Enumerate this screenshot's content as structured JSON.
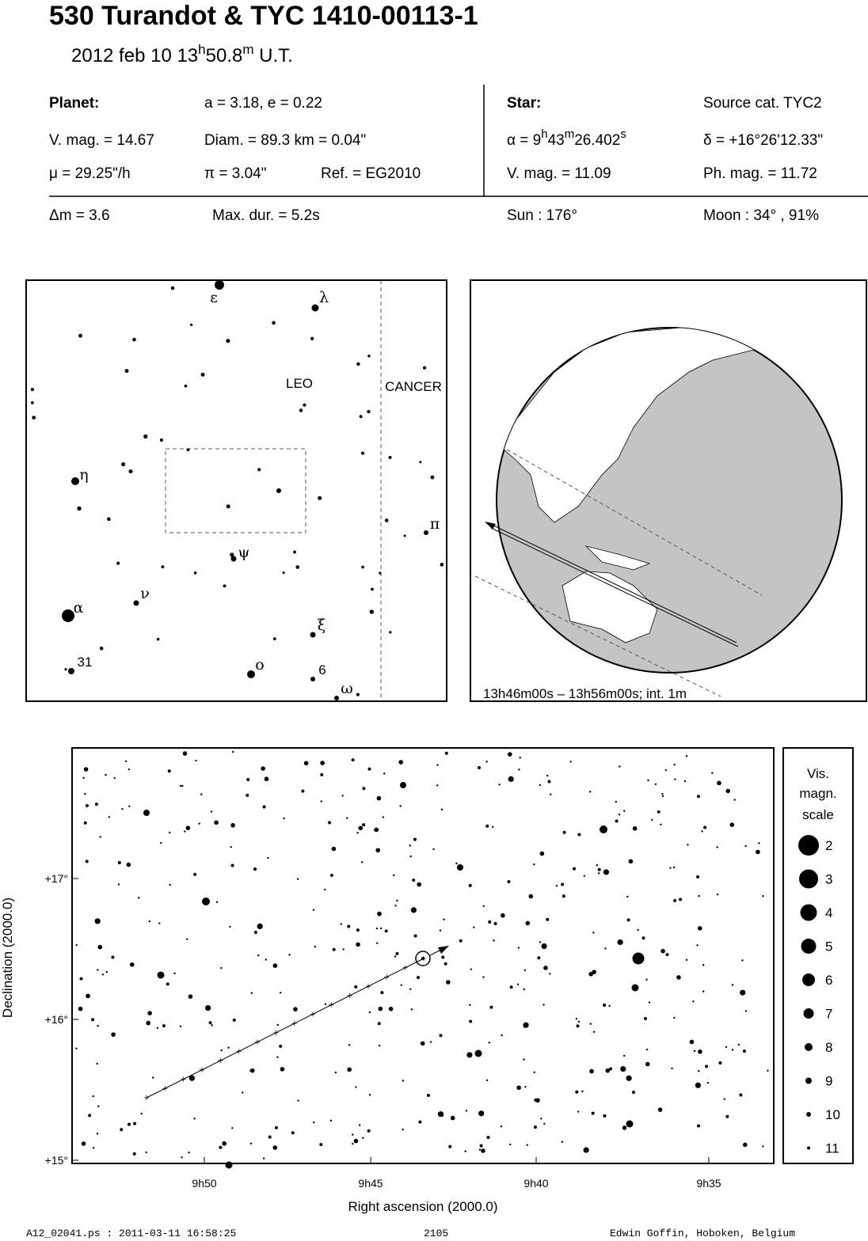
{
  "header": {
    "title": "530 Turandot  &  TYC 1410-00113-1",
    "subtitle": [
      "2012 feb 10  13",
      "h",
      "50.8",
      "m",
      " U.T."
    ]
  },
  "info": {
    "planet_label": "Planet:",
    "orbit": "a = 3.18, e = 0.22",
    "vmag": "V. mag. = 14.67",
    "diam": "Diam. = 89.3 km = 0.04\"",
    "mu": "μ =  29.25\"/h",
    "parallax": "π =  3.04\"",
    "ref": "Ref. = EG2010",
    "star_label": "Star:",
    "source": "Source cat.  TYC2",
    "alpha": [
      "α =  9",
      "h",
      "43",
      "m",
      "26.402",
      "s"
    ],
    "delta": "δ = +16°26'12.33\"",
    "star_vmag": "V. mag. = 11.09",
    "phmag": "Ph. mag. = 11.72",
    "dm": "Δm = 3.6",
    "maxdur": "Max. dur. = 5.2s",
    "sun": "Sun : 176°",
    "moon": "Moon :  34° , 91%"
  },
  "finder": {
    "labels": [
      "ε",
      "λ",
      "LEO",
      "CANCER",
      "η",
      "π",
      "ψ",
      "ν",
      "α",
      "ξ",
      "31",
      "ο",
      "6",
      "ω"
    ]
  },
  "globe": {
    "caption": "13h46m00s – 13h56m00s; int.  1m"
  },
  "star_chart": {
    "yticks": [
      "+17°",
      "+16°",
      "+15°"
    ],
    "xticks": [
      "9h50",
      "9h45",
      "9h40",
      "9h35"
    ],
    "xlabel": "Right ascension (2000.0)",
    "ylabel": "Declination (2000.0)"
  },
  "legend": {
    "title": [
      "Vis.",
      "magn.",
      "scale"
    ],
    "magnitudes": [
      "2",
      "3",
      "4",
      "5",
      "6",
      "7",
      "8",
      "9",
      "10",
      "11"
    ]
  },
  "footer": {
    "file": "A12_02041.ps : 2011-03-11 16:58:25",
    "number": "2105",
    "author": "Edwin Goffin, Hoboken, Belgium"
  }
}
